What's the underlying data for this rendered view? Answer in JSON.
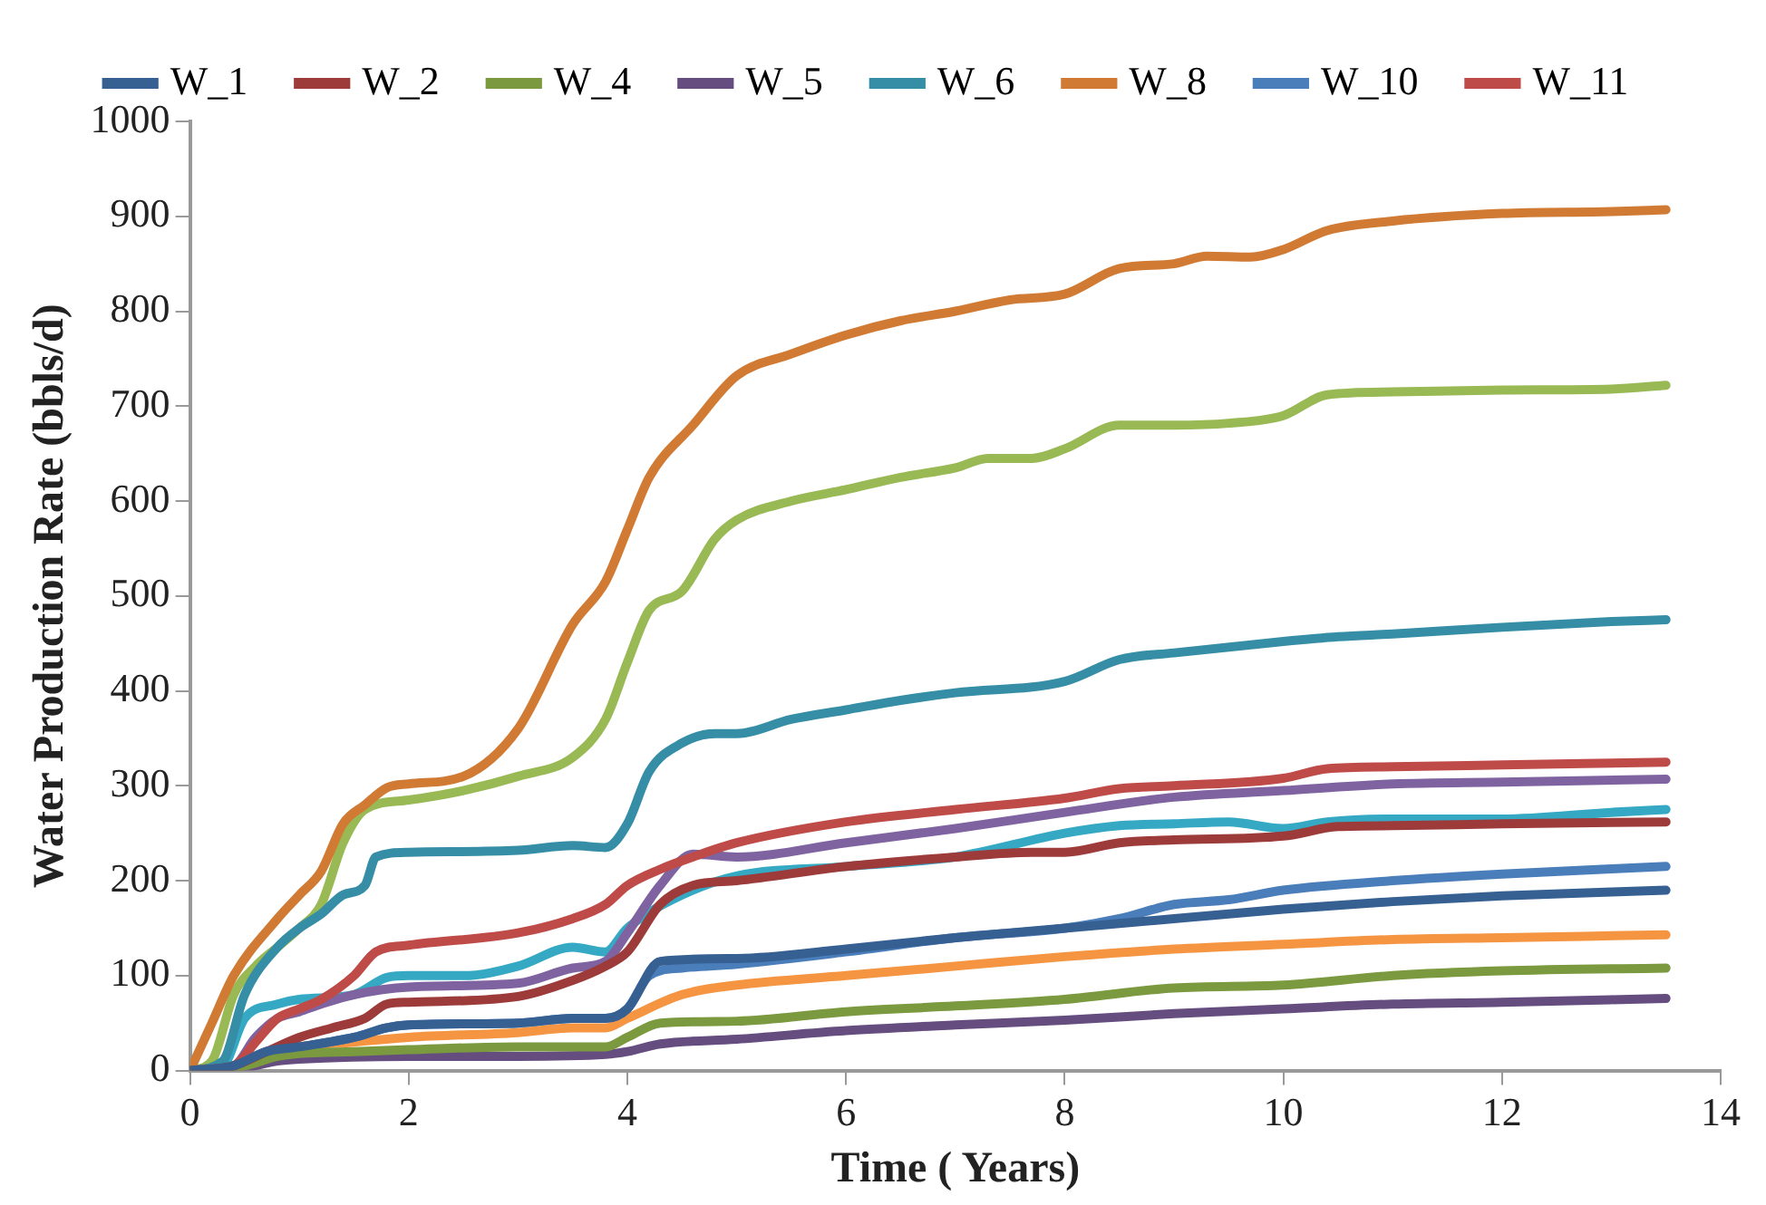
{
  "chart_data": {
    "type": "line",
    "xlabel": "Time ( Years)",
    "ylabel": "Water Production Rate (bbls/d)",
    "xlim": [
      0,
      14
    ],
    "xticks": [
      0,
      2,
      4,
      6,
      8,
      10,
      12,
      14
    ],
    "ylim": [
      0,
      1000
    ],
    "yticks": [
      0,
      100,
      200,
      300,
      400,
      500,
      600,
      700,
      800,
      900,
      1000
    ],
    "grid": false,
    "legend": "top",
    "marker": "none",
    "line_style": "solid",
    "series": [
      {
        "name": "W_1",
        "color": "#376092",
        "x": [
          0,
          0.4,
          0.7,
          1,
          1.5,
          1.8,
          2,
          3,
          3.5,
          3.8,
          4,
          4.3,
          5,
          6,
          7,
          8,
          9,
          10,
          11,
          12,
          13.5
        ],
        "values": [
          0,
          5,
          20,
          25,
          35,
          45,
          48,
          50,
          55,
          55,
          65,
          115,
          118,
          128,
          140,
          150,
          160,
          170,
          178,
          184,
          190
        ]
      },
      {
        "name": "W_2",
        "color": "#9c3b3a",
        "x": [
          0,
          0.4,
          0.7,
          1,
          1.3,
          1.6,
          1.8,
          2,
          3,
          3.5,
          3.8,
          4,
          4.3,
          4.6,
          5,
          6,
          7,
          7.7,
          8,
          8.5,
          9,
          10,
          10.5,
          11,
          12,
          13.5
        ],
        "values": [
          0,
          5,
          20,
          35,
          45,
          55,
          70,
          72,
          78,
          95,
          110,
          125,
          175,
          195,
          200,
          215,
          225,
          230,
          230,
          240,
          243,
          247,
          257,
          258,
          260,
          262
        ]
      },
      {
        "name": "W_4",
        "color": "#7b9a3f",
        "x": [
          0,
          0.5,
          0.8,
          1,
          1.5,
          2,
          3,
          3.8,
          4,
          4.3,
          5,
          6,
          7,
          8,
          9,
          10,
          11,
          12,
          13.5
        ],
        "values": [
          0,
          5,
          15,
          18,
          20,
          22,
          25,
          25,
          35,
          50,
          52,
          62,
          68,
          75,
          87,
          90,
          100,
          105,
          108
        ]
      },
      {
        "name": "W_5",
        "color": "#654d80",
        "x": [
          0,
          0.5,
          0.8,
          1,
          2,
          3,
          3.8,
          4,
          4.3,
          5,
          6,
          7,
          8,
          9,
          10,
          11,
          12,
          13.5
        ],
        "values": [
          0,
          3,
          10,
          12,
          15,
          15,
          17,
          20,
          28,
          33,
          42,
          48,
          53,
          60,
          65,
          70,
          72,
          76
        ]
      },
      {
        "name": "W_6",
        "color": "#358ea5",
        "x": [
          0,
          0.3,
          0.5,
          0.8,
          1,
          1.2,
          1.4,
          1.6,
          1.7,
          2,
          3,
          3.5,
          3.8,
          4,
          4.2,
          4.5,
          4.8,
          5,
          5.5,
          6,
          6.5,
          7,
          8,
          8.5,
          9,
          10,
          10.5,
          11,
          12,
          13,
          13.5
        ],
        "values": [
          0,
          10,
          80,
          130,
          150,
          165,
          185,
          195,
          225,
          230,
          232,
          237,
          235,
          260,
          315,
          345,
          355,
          355,
          370,
          380,
          390,
          398,
          410,
          433,
          440,
          452,
          457,
          460,
          467,
          473,
          475
        ]
      },
      {
        "name": "W_8",
        "color": "#d07a33",
        "x": [
          0,
          0.2,
          0.4,
          0.8,
          1,
          1.2,
          1.4,
          1.6,
          1.8,
          2,
          2.5,
          3,
          3.5,
          3.8,
          4,
          4.2,
          4.6,
          5,
          5.5,
          6,
          6.5,
          7,
          7.5,
          8,
          8.5,
          9,
          9.3,
          9.7,
          10,
          10.4,
          11,
          12,
          13,
          13.5
        ],
        "values": [
          0,
          50,
          100,
          160,
          185,
          210,
          260,
          280,
          298,
          302,
          310,
          360,
          470,
          515,
          570,
          625,
          680,
          732,
          755,
          775,
          790,
          800,
          812,
          818,
          845,
          850,
          858,
          857,
          865,
          885,
          895,
          903,
          905,
          907
        ]
      },
      {
        "name": "W_10",
        "color": "#4a7ebb",
        "x": [
          0,
          0.4,
          0.7,
          1,
          1.5,
          1.8,
          2,
          3,
          3.5,
          3.8,
          4,
          4.2,
          4.5,
          5,
          6,
          7,
          8,
          8.5,
          9,
          9.5,
          10,
          11,
          12,
          13.5
        ],
        "values": [
          0,
          5,
          20,
          25,
          35,
          45,
          48,
          50,
          55,
          55,
          65,
          100,
          108,
          112,
          125,
          140,
          150,
          160,
          175,
          180,
          190,
          200,
          207,
          215
        ]
      },
      {
        "name": "W_11",
        "color": "#be4b48",
        "x": [
          0,
          0.4,
          0.6,
          0.8,
          1,
          1.2,
          1.5,
          1.7,
          2,
          3,
          3.5,
          3.8,
          4,
          4.3,
          4.6,
          5,
          6,
          7,
          8,
          8.5,
          9,
          10,
          10.4,
          11,
          12,
          13.5
        ],
        "values": [
          0,
          5,
          30,
          55,
          65,
          75,
          100,
          125,
          132,
          145,
          160,
          175,
          195,
          212,
          225,
          240,
          262,
          275,
          287,
          297,
          300,
          308,
          318,
          320,
          322,
          325
        ]
      },
      {
        "color": "#98b954",
        "x": [
          0,
          0.2,
          0.4,
          0.6,
          0.8,
          1,
          1.2,
          1.4,
          1.6,
          2,
          2.5,
          3,
          3.5,
          3.8,
          4,
          4.2,
          4.5,
          4.8,
          5,
          5.5,
          6,
          6.5,
          7,
          7.3,
          7.7,
          8,
          8.5,
          9,
          9.5,
          10,
          10.4,
          11,
          12,
          13,
          13.5
        ],
        "values": [
          0,
          10,
          80,
          110,
          130,
          150,
          175,
          240,
          275,
          285,
          295,
          310,
          330,
          370,
          430,
          485,
          505,
          560,
          580,
          600,
          612,
          625,
          635,
          645,
          645,
          655,
          680,
          680,
          682,
          690,
          712,
          715,
          717,
          718,
          722
        ]
      },
      {
        "color": "#7f63a1",
        "x": [
          0,
          0.4,
          0.6,
          0.8,
          1,
          1.2,
          1.5,
          2,
          3,
          3.5,
          3.8,
          4,
          4.3,
          4.6,
          5,
          6,
          7,
          8,
          9,
          10,
          11,
          12,
          13.5
        ],
        "values": [
          0,
          5,
          35,
          55,
          62,
          70,
          80,
          88,
          92,
          108,
          115,
          145,
          195,
          228,
          225,
          240,
          255,
          272,
          288,
          295,
          302,
          304,
          307
        ]
      },
      {
        "color": "#35a9c4",
        "x": [
          0,
          0.3,
          0.5,
          0.8,
          1,
          1.5,
          1.8,
          2,
          2.5,
          3,
          3.5,
          3.8,
          4,
          4.5,
          5,
          6,
          7,
          8,
          8.5,
          9,
          9.5,
          10,
          10.4,
          11,
          12,
          13,
          13.5
        ],
        "values": [
          0,
          5,
          55,
          70,
          75,
          80,
          98,
          100,
          100,
          110,
          130,
          125,
          150,
          185,
          205,
          215,
          225,
          250,
          258,
          260,
          262,
          255,
          262,
          265,
          265,
          272,
          275
        ]
      },
      {
        "color": "#f59441",
        "x": [
          0,
          0.5,
          0.8,
          1,
          1.5,
          2,
          3,
          3.5,
          3.8,
          4,
          4.5,
          5,
          6,
          7,
          8,
          9,
          10,
          11,
          12,
          13.5
        ],
        "values": [
          0,
          5,
          20,
          25,
          30,
          35,
          40,
          45,
          45,
          55,
          80,
          90,
          100,
          110,
          120,
          128,
          133,
          138,
          140,
          143
        ]
      }
    ]
  }
}
